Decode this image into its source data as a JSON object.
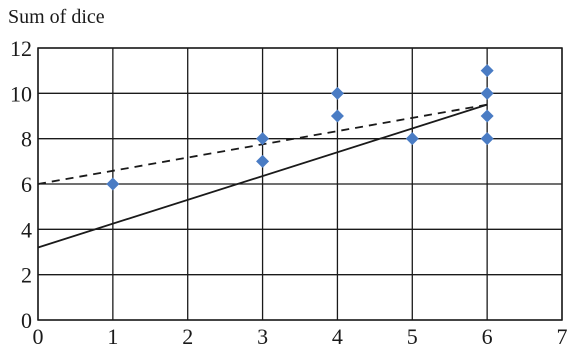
{
  "chart_data": {
    "type": "scatter",
    "ylabel": "Sum of dice",
    "xlabel": "",
    "xlim": [
      0,
      7
    ],
    "ylim": [
      0,
      12
    ],
    "x_ticks": [
      0,
      1,
      2,
      3,
      4,
      5,
      6,
      7
    ],
    "y_ticks": [
      0,
      2,
      4,
      6,
      8,
      10,
      12
    ],
    "grid": true,
    "points": [
      {
        "x": 1,
        "y": 6
      },
      {
        "x": 3,
        "y": 7
      },
      {
        "x": 3,
        "y": 8
      },
      {
        "x": 4,
        "y": 9
      },
      {
        "x": 4,
        "y": 10
      },
      {
        "x": 5,
        "y": 8
      },
      {
        "x": 6,
        "y": 8
      },
      {
        "x": 6,
        "y": 9
      },
      {
        "x": 6,
        "y": 10
      },
      {
        "x": 6,
        "y": 11
      }
    ],
    "lines": [
      {
        "style": "dashed",
        "x": [
          0,
          6
        ],
        "y": [
          6,
          9.5
        ]
      },
      {
        "style": "solid",
        "x": [
          0,
          6
        ],
        "y": [
          3.2,
          9.5
        ]
      }
    ],
    "marker_color": "#4a7cc4",
    "line_color": "#1a1a1a"
  }
}
